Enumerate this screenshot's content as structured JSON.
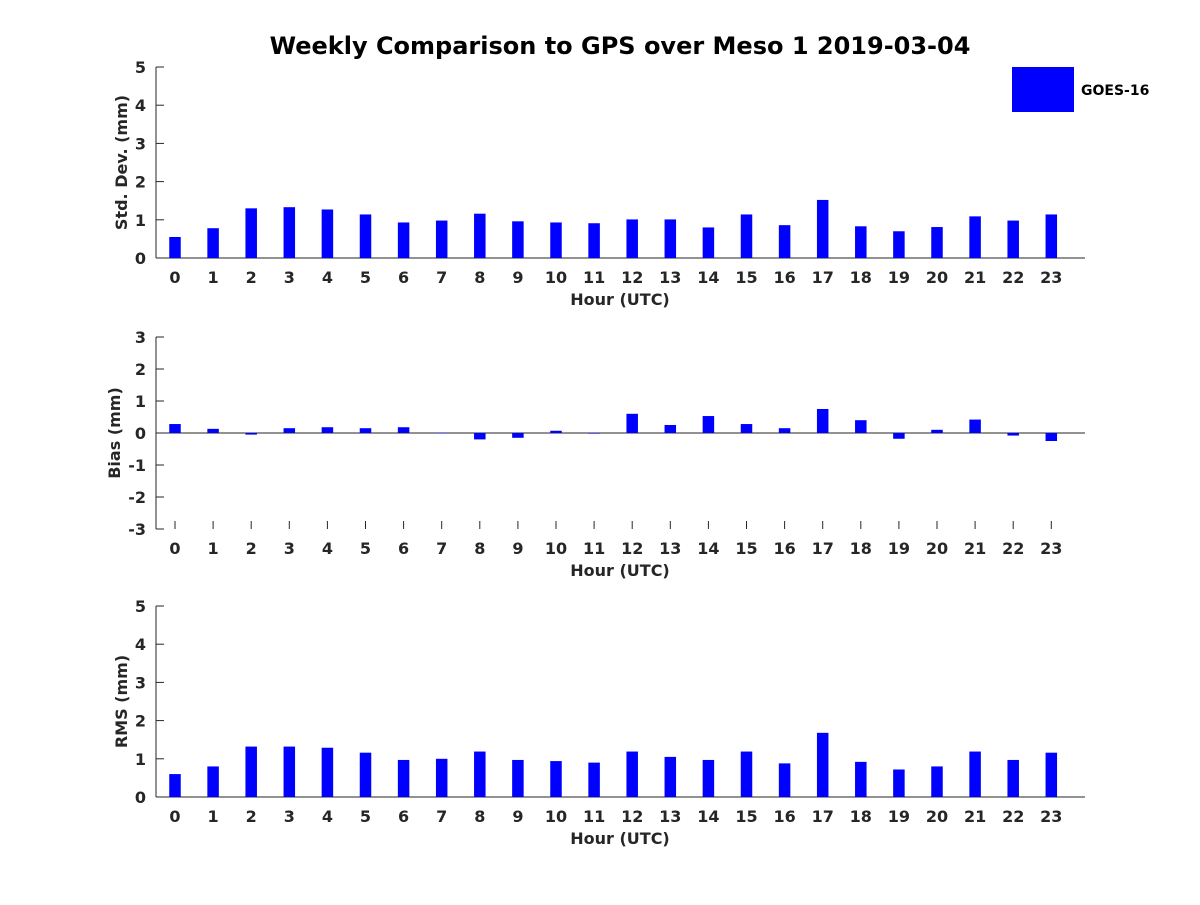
{
  "colors": {
    "bar": "#0000ff",
    "axis": "#262626",
    "background": "#ffffff"
  },
  "chart_data": {
    "type": "bar",
    "title": "Weekly Comparison to GPS over Meso 1 2019-03-04",
    "legend": {
      "label": "GOES-16",
      "position": "top-right"
    },
    "categories": [
      "0",
      "1",
      "2",
      "3",
      "4",
      "5",
      "6",
      "7",
      "8",
      "9",
      "10",
      "11",
      "12",
      "13",
      "14",
      "15",
      "16",
      "17",
      "18",
      "19",
      "20",
      "21",
      "22",
      "23"
    ],
    "panels": [
      {
        "id": "std",
        "ylabel": "Std. Dev. (mm)",
        "xlabel": "Hour (UTC)",
        "ylim": [
          0,
          5
        ],
        "yticks": [
          "0",
          "1",
          "2",
          "3",
          "4",
          "5"
        ],
        "series": [
          {
            "name": "GOES-16",
            "values": [
              0.55,
              0.78,
              1.3,
              1.33,
              1.27,
              1.14,
              0.93,
              0.98,
              1.16,
              0.96,
              0.93,
              0.91,
              1.01,
              1.01,
              0.8,
              1.14,
              0.86,
              1.52,
              0.83,
              0.7,
              0.81,
              1.09,
              0.98,
              1.14
            ]
          }
        ]
      },
      {
        "id": "bias",
        "ylabel": "Bias (mm)",
        "xlabel": "Hour (UTC)",
        "ylim": [
          -3,
          3
        ],
        "yticks": [
          "-3",
          "-2",
          "-1",
          "0",
          "1",
          "2",
          "3"
        ],
        "series": [
          {
            "name": "GOES-16",
            "values": [
              0.28,
              0.13,
              -0.05,
              0.15,
              0.18,
              0.15,
              0.18,
              0.0,
              -0.2,
              -0.15,
              0.07,
              -0.02,
              0.6,
              0.25,
              0.53,
              0.28,
              0.15,
              0.75,
              0.4,
              -0.18,
              0.1,
              0.42,
              -0.08,
              -0.25
            ]
          }
        ]
      },
      {
        "id": "rms",
        "ylabel": "RMS (mm)",
        "xlabel": "Hour (UTC)",
        "ylim": [
          0,
          5
        ],
        "yticks": [
          "0",
          "1",
          "2",
          "3",
          "4",
          "5"
        ],
        "series": [
          {
            "name": "GOES-16",
            "values": [
              0.6,
              0.8,
              1.32,
              1.32,
              1.29,
              1.16,
              0.97,
              1.0,
              1.19,
              0.97,
              0.94,
              0.9,
              1.19,
              1.05,
              0.97,
              1.19,
              0.88,
              1.68,
              0.92,
              0.72,
              0.8,
              1.19,
              0.97,
              1.16
            ]
          }
        ]
      }
    ]
  }
}
